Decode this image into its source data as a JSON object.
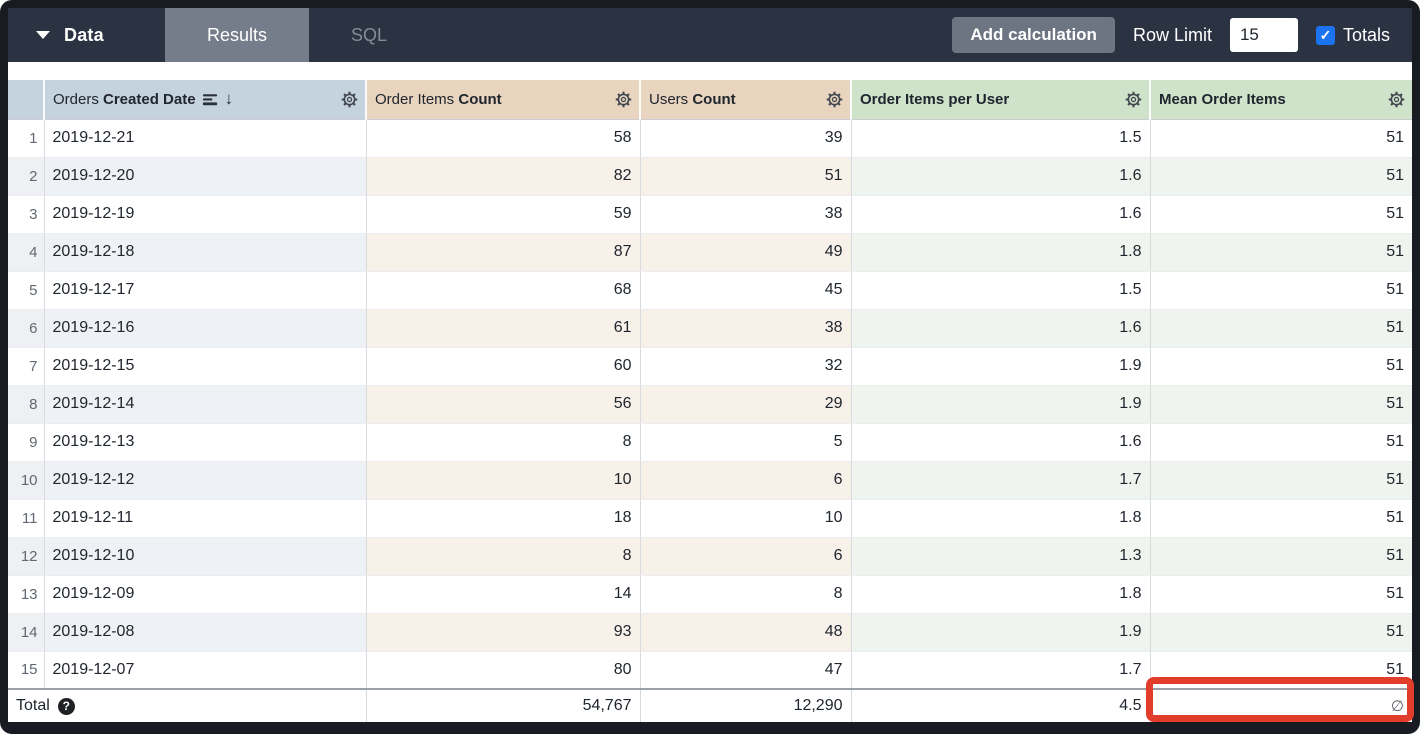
{
  "toolbar": {
    "data_label": "Data",
    "tabs": [
      {
        "label": "Results",
        "active": true
      },
      {
        "label": "SQL",
        "active": false
      }
    ],
    "add_calculation_label": "Add calculation",
    "row_limit_label": "Row Limit",
    "row_limit_value": "15",
    "totals_label": "Totals",
    "totals_checked": true,
    "accent_checkbox_color": "#1b73ef"
  },
  "table": {
    "columns": [
      {
        "label_regular": "Orders ",
        "label_bold": "Created Date",
        "type": "dimension",
        "sorted_desc": true,
        "header_color": "#c4d3dd"
      },
      {
        "label_regular": "Order Items ",
        "label_bold": "Count",
        "type": "measure",
        "header_color": "#e9d5bf"
      },
      {
        "label_regular": "Users ",
        "label_bold": "Count",
        "type": "measure",
        "header_color": "#e9d5bf"
      },
      {
        "label_regular": "",
        "label_bold": "Order Items per User",
        "type": "table_calculation",
        "header_color": "#cfe3cb"
      },
      {
        "label_regular": "",
        "label_bold": "Mean Order Items",
        "type": "table_calculation",
        "header_color": "#cfe3cb"
      }
    ],
    "rows": [
      {
        "n": "1",
        "date": "2019-12-21",
        "order_items_count": "58",
        "users_count": "39",
        "items_per_user": "1.5",
        "mean_order_items": "51"
      },
      {
        "n": "2",
        "date": "2019-12-20",
        "order_items_count": "82",
        "users_count": "51",
        "items_per_user": "1.6",
        "mean_order_items": "51"
      },
      {
        "n": "3",
        "date": "2019-12-19",
        "order_items_count": "59",
        "users_count": "38",
        "items_per_user": "1.6",
        "mean_order_items": "51"
      },
      {
        "n": "4",
        "date": "2019-12-18",
        "order_items_count": "87",
        "users_count": "49",
        "items_per_user": "1.8",
        "mean_order_items": "51"
      },
      {
        "n": "5",
        "date": "2019-12-17",
        "order_items_count": "68",
        "users_count": "45",
        "items_per_user": "1.5",
        "mean_order_items": "51"
      },
      {
        "n": "6",
        "date": "2019-12-16",
        "order_items_count": "61",
        "users_count": "38",
        "items_per_user": "1.6",
        "mean_order_items": "51"
      },
      {
        "n": "7",
        "date": "2019-12-15",
        "order_items_count": "60",
        "users_count": "32",
        "items_per_user": "1.9",
        "mean_order_items": "51"
      },
      {
        "n": "8",
        "date": "2019-12-14",
        "order_items_count": "56",
        "users_count": "29",
        "items_per_user": "1.9",
        "mean_order_items": "51"
      },
      {
        "n": "9",
        "date": "2019-12-13",
        "order_items_count": "8",
        "users_count": "5",
        "items_per_user": "1.6",
        "mean_order_items": "51"
      },
      {
        "n": "10",
        "date": "2019-12-12",
        "order_items_count": "10",
        "users_count": "6",
        "items_per_user": "1.7",
        "mean_order_items": "51"
      },
      {
        "n": "11",
        "date": "2019-12-11",
        "order_items_count": "18",
        "users_count": "10",
        "items_per_user": "1.8",
        "mean_order_items": "51"
      },
      {
        "n": "12",
        "date": "2019-12-10",
        "order_items_count": "8",
        "users_count": "6",
        "items_per_user": "1.3",
        "mean_order_items": "51"
      },
      {
        "n": "13",
        "date": "2019-12-09",
        "order_items_count": "14",
        "users_count": "8",
        "items_per_user": "1.8",
        "mean_order_items": "51"
      },
      {
        "n": "14",
        "date": "2019-12-08",
        "order_items_count": "93",
        "users_count": "48",
        "items_per_user": "1.9",
        "mean_order_items": "51"
      },
      {
        "n": "15",
        "date": "2019-12-07",
        "order_items_count": "80",
        "users_count": "47",
        "items_per_user": "1.7",
        "mean_order_items": "51"
      }
    ],
    "total": {
      "label": "Total",
      "order_items_count": "54,767",
      "users_count": "12,290",
      "items_per_user": "4.5",
      "mean_order_items": "∅"
    }
  },
  "annotation": {
    "highlight_color": "#e23c2a",
    "highlighted_cell": "total mean_order_items"
  }
}
